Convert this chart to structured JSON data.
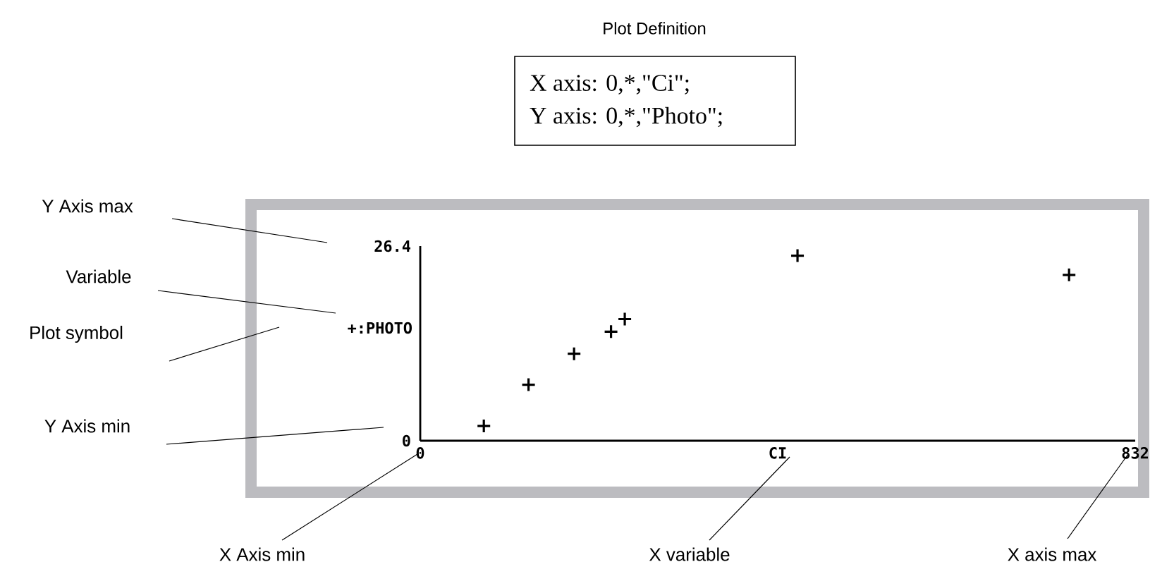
{
  "chart_data": {
    "type": "scatter",
    "title": "Plot Definition",
    "xlabel": "CI",
    "ylabel": "+:PHOTO",
    "x": [
      74,
      126,
      179,
      222,
      238,
      439,
      755
    ],
    "series": [
      {
        "color": "#000000",
        "values": [
          2.0,
          7.6,
          11.8,
          14.8,
          16.5,
          25.1,
          22.5
        ]
      }
    ],
    "xlim": [
      0,
      832
    ],
    "xticks": [
      0,
      832
    ],
    "ylim": [
      0,
      26.4
    ],
    "yticks": [
      0,
      26.4
    ],
    "marker": "cross",
    "grid": false,
    "annotations": [
      "X axis: 0,*,\"Ci\";",
      "Y axis: 0,*,\"Photo\";",
      "Y Axis max",
      "Variable",
      "Plot symbol",
      "Y Axis min",
      "X Axis min",
      "X variable",
      "X axis max"
    ]
  }
}
